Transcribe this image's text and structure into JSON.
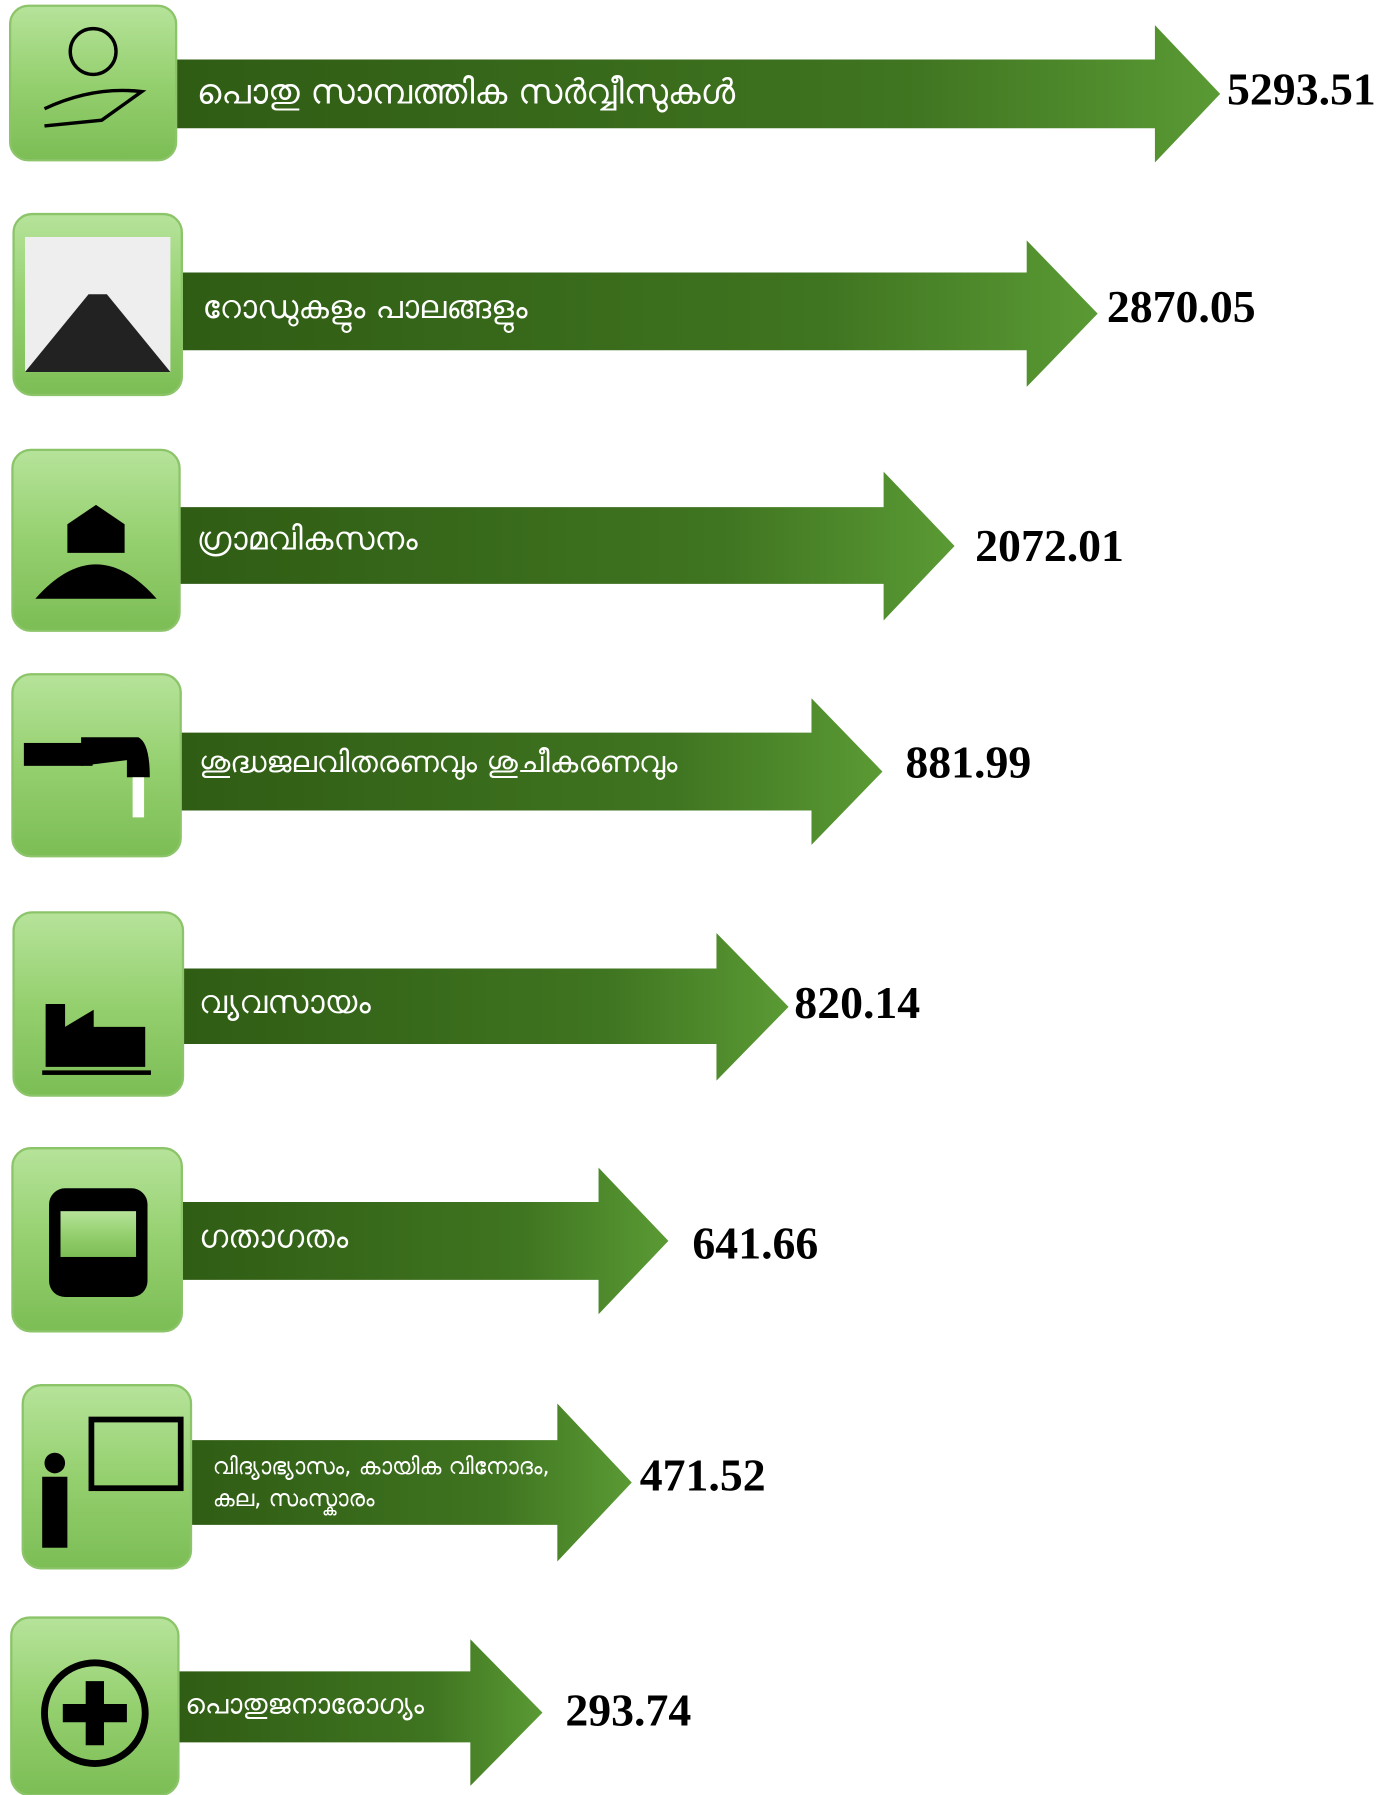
{
  "items": [
    {
      "label": "പൊതു സാമ്പത്തിക സർവ്വീസുകൾ",
      "value": "5293.51"
    },
    {
      "label": "റോഡുകളും  പാലങ്ങളും",
      "value": "2870.05"
    },
    {
      "label": "ഗ്രാമവികസനം",
      "value": "2072.01"
    },
    {
      "label": "ശുദ്ധജലവിതരണവും ശുചീകരണവും",
      "value": "881.99"
    },
    {
      "label": "വ്യവസായം",
      "value": "820.14"
    },
    {
      "label": "ഗതാഗതം",
      "value": "641.66"
    },
    {
      "label": [
        "വിദ്യാഭ്യാസം, കായിക വിനോദം,",
        "കല, സംസ്കാരം"
      ],
      "value": "471.52"
    },
    {
      "label": "പൊതുജനാരോഗ്യം",
      "value": "293.74"
    }
  ]
}
